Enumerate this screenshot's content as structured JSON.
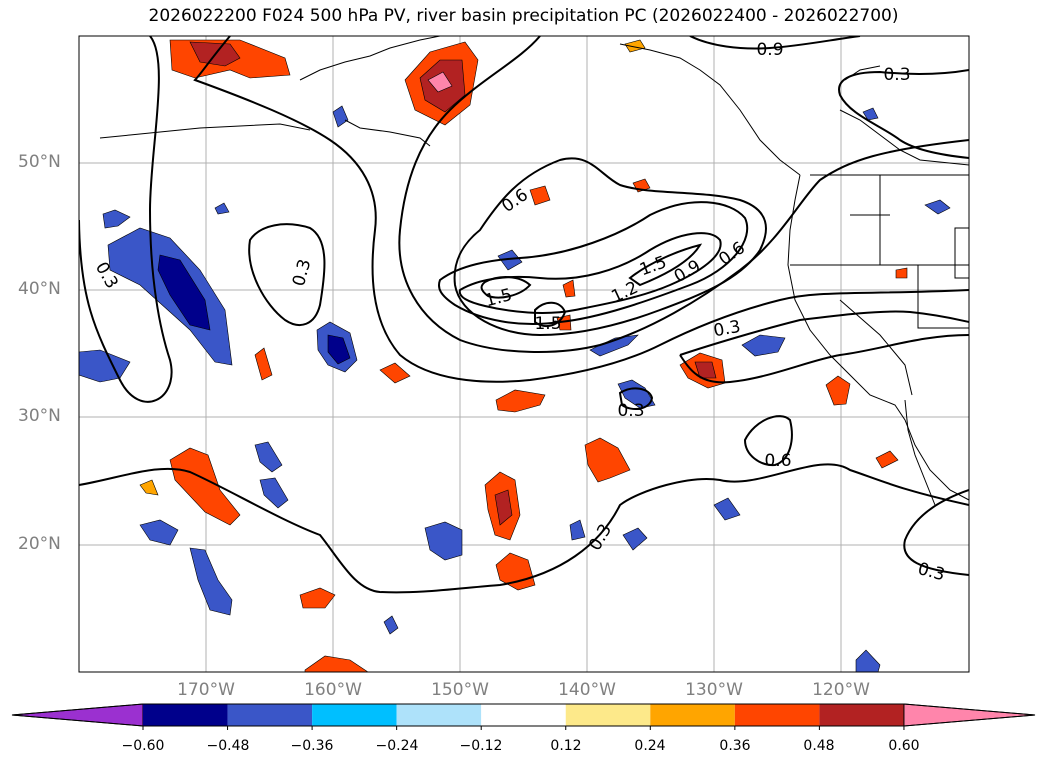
{
  "title": "2026022200 F024 500 hPa PV, river basin precipitation PC (2026022400 - 2026022700)",
  "lat_labels": [
    "50°N",
    "40°N",
    "30°N",
    "20°N"
  ],
  "lon_labels": [
    "170°W",
    "160°W",
    "150°W",
    "140°W",
    "130°W",
    "120°W"
  ],
  "contour_labels": [
    "0.9",
    "0.3",
    "0.6",
    "1.5",
    "1.5",
    "1.5",
    "1.2",
    "0.9",
    "0.6",
    "0.3",
    "0.3",
    "0.3",
    "0.6",
    "0.3",
    "0.3",
    "0.3"
  ],
  "colorbar": {
    "ticks": [
      "−0.60",
      "−0.48",
      "−0.36",
      "−0.24",
      "−0.12",
      "0.12",
      "0.24",
      "0.36",
      "0.48",
      "0.60"
    ],
    "colors": [
      "#9b30d0",
      "#00008b",
      "#3a56c8",
      "#00bfff",
      "#aee2fa",
      "#ffffff",
      "#fde98a",
      "#ffa500",
      "#ff4500",
      "#b22222",
      "#ff85ab"
    ]
  }
}
